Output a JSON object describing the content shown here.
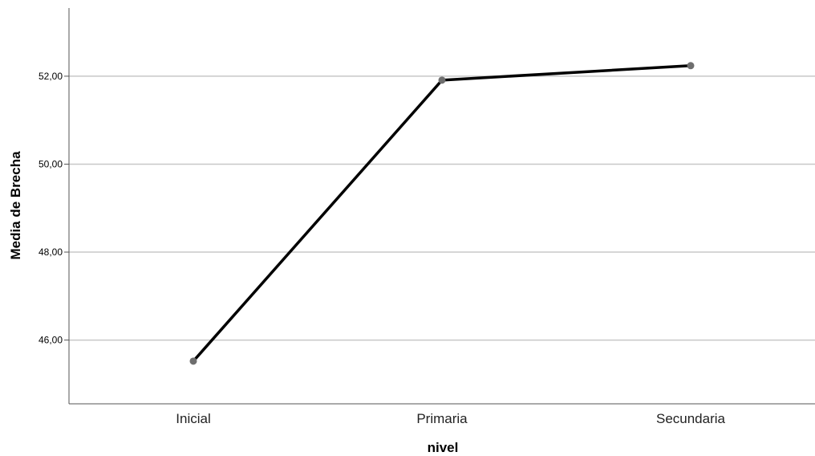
{
  "chart_data": {
    "type": "line",
    "title": "",
    "xlabel": "nivel",
    "ylabel": "Media de Brecha",
    "categories": [
      "Inicial",
      "Primaria",
      "Secundaria"
    ],
    "series": [
      {
        "values": [
          45.52,
          51.91,
          52.24
        ]
      }
    ],
    "ylim": [
      44.55,
      53.55
    ],
    "yticks": [
      46,
      48,
      50,
      52
    ],
    "ytick_labels": [
      "46,00",
      "48,00",
      "50,00",
      "52,00"
    ],
    "grid": "horizontal",
    "colors": {
      "line": "#000000",
      "marker": "#6e6e6e",
      "grid": "#c8c8c8",
      "axis": "#555555"
    }
  }
}
